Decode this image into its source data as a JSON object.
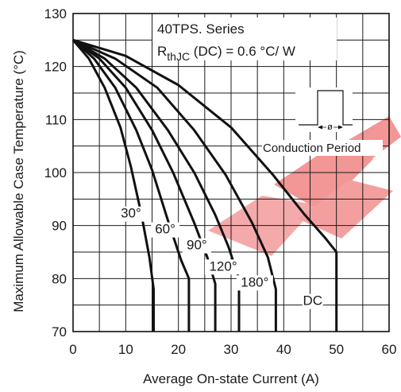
{
  "chart_data": {
    "type": "line",
    "title": "",
    "xlabel": "Average On-state Current (A)",
    "ylabel": "Maximum Allowable Case Temperature (°C)",
    "xlim": [
      0,
      60
    ],
    "ylim": [
      70,
      130
    ],
    "x_ticks": [
      "0",
      "10",
      "20",
      "30",
      "40",
      "50",
      "60"
    ],
    "y_ticks": [
      "70",
      "80",
      "90",
      "100",
      "110",
      "120",
      "130"
    ],
    "grid": true,
    "annotations": {
      "series_title": "40TPS. Series",
      "rth_main": "R",
      "rth_sub": "thJC",
      "rth_rest": " (DC) = 0.6 °C/ W",
      "conduction_label": "Conduction Period",
      "phi": "ø"
    },
    "series": [
      {
        "name": "30°",
        "label_at": [
          11.0,
          91.5
        ],
        "points": [
          [
            0,
            125
          ],
          [
            3,
            121.5
          ],
          [
            6,
            116
          ],
          [
            9,
            108.5
          ],
          [
            11,
            101
          ],
          [
            13,
            92
          ],
          [
            14.5,
            84
          ],
          [
            15.3,
            78
          ],
          [
            15.3,
            70
          ]
        ]
      },
      {
        "name": "60°",
        "label_at": [
          17.5,
          88.5
        ],
        "points": [
          [
            0,
            125
          ],
          [
            4,
            121.5
          ],
          [
            8,
            116
          ],
          [
            12,
            108
          ],
          [
            15,
            100.5
          ],
          [
            18,
            91
          ],
          [
            20.5,
            83.5
          ],
          [
            22,
            80
          ],
          [
            22,
            70
          ]
        ]
      },
      {
        "name": "90°",
        "label_at": [
          23.5,
          85.5
        ],
        "points": [
          [
            0,
            125
          ],
          [
            5,
            121.5
          ],
          [
            10,
            116
          ],
          [
            15,
            108
          ],
          [
            19,
            100
          ],
          [
            23,
            90.5
          ],
          [
            25.5,
            84
          ],
          [
            27,
            79
          ],
          [
            27,
            70
          ]
        ]
      },
      {
        "name": "120°",
        "label_at": [
          28.5,
          81.5
        ],
        "points": [
          [
            0,
            125
          ],
          [
            6,
            121.5
          ],
          [
            12,
            116
          ],
          [
            18,
            108
          ],
          [
            23,
            100
          ],
          [
            27,
            92
          ],
          [
            29.5,
            86
          ],
          [
            31.5,
            80
          ],
          [
            31.5,
            70
          ]
        ]
      },
      {
        "name": "180°",
        "label_at": [
          34.5,
          78.5
        ],
        "points": [
          [
            0,
            125
          ],
          [
            8,
            121.5
          ],
          [
            16,
            116
          ],
          [
            23,
            108
          ],
          [
            29,
            99.5
          ],
          [
            34,
            90.5
          ],
          [
            37,
            84
          ],
          [
            38.5,
            78
          ],
          [
            38.5,
            70
          ]
        ]
      },
      {
        "name": "DC",
        "label_at": [
          45.5,
          75.0
        ],
        "points": [
          [
            0,
            125
          ],
          [
            10,
            122
          ],
          [
            20,
            116.5
          ],
          [
            30,
            108.5
          ],
          [
            38,
            99.5
          ],
          [
            44,
            92
          ],
          [
            48,
            87.5
          ],
          [
            50,
            85
          ],
          [
            50,
            70
          ]
        ]
      }
    ]
  }
}
